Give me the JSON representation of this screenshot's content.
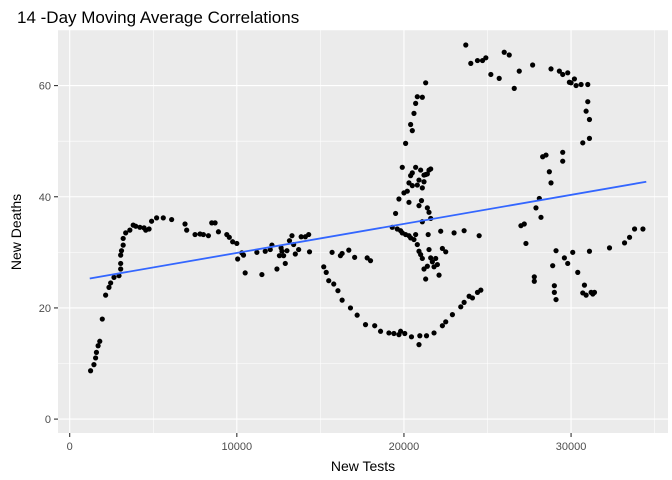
{
  "chart_data": {
    "type": "scatter",
    "title": "14 -Day Moving Average Correlations",
    "xlabel": "New Tests",
    "ylabel": "New Deaths",
    "xlim": [
      -700,
      35800
    ],
    "ylim": [
      -2.5,
      70
    ],
    "xticks": [
      0,
      10000,
      20000,
      30000
    ],
    "xtick_labels": [
      "0",
      "10000",
      "20000",
      "30000"
    ],
    "yticks": [
      0,
      20,
      40,
      60
    ],
    "ytick_labels": [
      "0",
      "20",
      "40",
      "60"
    ],
    "grid": true,
    "background": "#ebebeb",
    "point_color": "#000000",
    "trend_color": "#3366ff",
    "trend_line": {
      "x": [
        1200,
        34500
      ],
      "y": [
        25.3,
        42.7
      ]
    },
    "points": [
      [
        1250,
        8.7
      ],
      [
        1450,
        9.8
      ],
      [
        1550,
        11.0
      ],
      [
        1600,
        12.0
      ],
      [
        1700,
        13.2
      ],
      [
        1800,
        14.0
      ],
      [
        1950,
        18.0
      ],
      [
        2150,
        22.3
      ],
      [
        2350,
        23.7
      ],
      [
        2450,
        24.5
      ],
      [
        2650,
        25.5
      ],
      [
        2950,
        25.8
      ],
      [
        3050,
        27.0
      ],
      [
        3050,
        28.0
      ],
      [
        3050,
        29.5
      ],
      [
        3100,
        30.3
      ],
      [
        3200,
        31.3
      ],
      [
        3200,
        32.5
      ],
      [
        3350,
        33.5
      ],
      [
        3600,
        34.0
      ],
      [
        3800,
        34.9
      ],
      [
        3950,
        34.7
      ],
      [
        4200,
        34.5
      ],
      [
        4450,
        34.4
      ],
      [
        4550,
        34.0
      ],
      [
        4750,
        34.2
      ],
      [
        4900,
        35.6
      ],
      [
        5200,
        36.2
      ],
      [
        5600,
        36.2
      ],
      [
        6100,
        35.9
      ],
      [
        6900,
        35.1
      ],
      [
        7000,
        34.0
      ],
      [
        7500,
        33.2
      ],
      [
        7800,
        33.3
      ],
      [
        8000,
        33.2
      ],
      [
        8300,
        33.0
      ],
      [
        8500,
        35.3
      ],
      [
        8700,
        35.3
      ],
      [
        8900,
        33.7
      ],
      [
        9400,
        33.2
      ],
      [
        9550,
        32.7
      ],
      [
        9750,
        31.9
      ],
      [
        10000,
        31.6
      ],
      [
        10050,
        28.8
      ],
      [
        10300,
        29.9
      ],
      [
        10400,
        29.5
      ],
      [
        10500,
        26.3
      ],
      [
        11200,
        30.0
      ],
      [
        11500,
        26.0
      ],
      [
        11700,
        30.2
      ],
      [
        12000,
        30.5
      ],
      [
        12100,
        31.3
      ],
      [
        12400,
        27.0
      ],
      [
        12550,
        29.4
      ],
      [
        12650,
        30.8
      ],
      [
        12700,
        30.2
      ],
      [
        12800,
        29.4
      ],
      [
        12900,
        28.0
      ],
      [
        13000,
        30.3
      ],
      [
        13150,
        32.1
      ],
      [
        13300,
        33.0
      ],
      [
        13400,
        31.4
      ],
      [
        13500,
        29.7
      ],
      [
        13700,
        30.5
      ],
      [
        13850,
        32.8
      ],
      [
        14100,
        32.8
      ],
      [
        14300,
        33.2
      ],
      [
        14350,
        30.1
      ],
      [
        15200,
        27.4
      ],
      [
        15350,
        26.4
      ],
      [
        15500,
        24.9
      ],
      [
        15700,
        30.0
      ],
      [
        15800,
        24.3
      ],
      [
        16050,
        23.1
      ],
      [
        16200,
        29.4
      ],
      [
        16300,
        29.8
      ],
      [
        16300,
        21.4
      ],
      [
        16700,
        30.4
      ],
      [
        16800,
        20.0
      ],
      [
        17050,
        29.1
      ],
      [
        17200,
        18.7
      ],
      [
        17700,
        17.0
      ],
      [
        17800,
        29.0
      ],
      [
        18000,
        28.5
      ],
      [
        18250,
        16.8
      ],
      [
        18600,
        15.8
      ],
      [
        19100,
        15.5
      ],
      [
        19400,
        15.4
      ],
      [
        19700,
        15.2
      ],
      [
        19800,
        15.8
      ],
      [
        20050,
        15.4
      ],
      [
        20450,
        14.8
      ],
      [
        20900,
        13.4
      ],
      [
        20950,
        15.0
      ],
      [
        21350,
        15.0
      ],
      [
        21800,
        15.5
      ],
      [
        22300,
        16.8
      ],
      [
        22500,
        17.5
      ],
      [
        22900,
        18.8
      ],
      [
        23400,
        20.2
      ],
      [
        23600,
        21.0
      ],
      [
        23900,
        22.1
      ],
      [
        24100,
        21.8
      ],
      [
        24400,
        22.8
      ],
      [
        24600,
        23.2
      ],
      [
        23700,
        67.3
      ],
      [
        24000,
        64.0
      ],
      [
        24400,
        64.5
      ],
      [
        24700,
        64.5
      ],
      [
        24900,
        65.0
      ],
      [
        25200,
        62.0
      ],
      [
        25700,
        61.3
      ],
      [
        26000,
        66.0
      ],
      [
        26300,
        65.5
      ],
      [
        26600,
        59.5
      ],
      [
        26900,
        62.6
      ],
      [
        27000,
        34.8
      ],
      [
        27200,
        35.1
      ],
      [
        27300,
        31.6
      ],
      [
        27700,
        63.7
      ],
      [
        27800,
        24.8
      ],
      [
        27800,
        25.6
      ],
      [
        27900,
        38.0
      ],
      [
        28100,
        39.7
      ],
      [
        28200,
        36.3
      ],
      [
        28300,
        47.2
      ],
      [
        28500,
        47.5
      ],
      [
        28700,
        44.5
      ],
      [
        28800,
        42.5
      ],
      [
        28800,
        63.0
      ],
      [
        28900,
        27.6
      ],
      [
        29000,
        24.0
      ],
      [
        29000,
        22.8
      ],
      [
        29100,
        21.5
      ],
      [
        29100,
        30.3
      ],
      [
        29300,
        62.6
      ],
      [
        29500,
        48.0
      ],
      [
        29500,
        46.4
      ],
      [
        29500,
        62.0
      ],
      [
        29600,
        29.0
      ],
      [
        29800,
        62.3
      ],
      [
        29800,
        28.0
      ],
      [
        29900,
        60.6
      ],
      [
        30000,
        60.5
      ],
      [
        30100,
        30.0
      ],
      [
        30200,
        61.2
      ],
      [
        30300,
        60.0
      ],
      [
        30400,
        26.4
      ],
      [
        30600,
        60.2
      ],
      [
        30700,
        49.7
      ],
      [
        30700,
        22.7
      ],
      [
        30800,
        24.1
      ],
      [
        30900,
        22.3
      ],
      [
        30900,
        55.4
      ],
      [
        31000,
        60.2
      ],
      [
        31000,
        57.1
      ],
      [
        31100,
        53.9
      ],
      [
        31100,
        50.5
      ],
      [
        31100,
        30.2
      ],
      [
        31200,
        22.8
      ],
      [
        31300,
        22.5
      ],
      [
        31400,
        22.8
      ],
      [
        32300,
        30.8
      ],
      [
        33200,
        31.7
      ],
      [
        33500,
        32.7
      ],
      [
        33800,
        34.2
      ],
      [
        34300,
        34.2
      ],
      [
        19300,
        34.5
      ],
      [
        19600,
        34.2
      ],
      [
        19800,
        33.9
      ],
      [
        19900,
        33.5
      ],
      [
        20100,
        33.2
      ],
      [
        20300,
        33.0
      ],
      [
        20400,
        32.6
      ],
      [
        20600,
        32.3
      ],
      [
        20700,
        33.2
      ],
      [
        20800,
        31.4
      ],
      [
        20900,
        30.2
      ],
      [
        21000,
        29.6
      ],
      [
        21100,
        28.9
      ],
      [
        21200,
        27.0
      ],
      [
        21300,
        25.2
      ],
      [
        21400,
        27.5
      ],
      [
        21450,
        33.2
      ],
      [
        21500,
        30.5
      ],
      [
        21600,
        29.0
      ],
      [
        21700,
        28.3
      ],
      [
        21800,
        27.4
      ],
      [
        21900,
        28.9
      ],
      [
        22000,
        27.8
      ],
      [
        22100,
        25.9
      ],
      [
        22200,
        33.8
      ],
      [
        22300,
        30.7
      ],
      [
        22500,
        30.1
      ],
      [
        23000,
        33.5
      ],
      [
        23600,
        33.9
      ],
      [
        24500,
        33.0
      ],
      [
        19500,
        37.0
      ],
      [
        19700,
        39.6
      ],
      [
        20000,
        40.7
      ],
      [
        20200,
        41.0
      ],
      [
        20300,
        42.5
      ],
      [
        20400,
        43.8
      ],
      [
        20500,
        44.3
      ],
      [
        20700,
        45.3
      ],
      [
        20900,
        43.0
      ],
      [
        21000,
        44.8
      ],
      [
        21100,
        41.6
      ],
      [
        21200,
        42.7
      ],
      [
        21300,
        44.0
      ],
      [
        21400,
        38.0
      ],
      [
        21500,
        37.2
      ],
      [
        21600,
        36.1
      ],
      [
        21100,
        35.5
      ],
      [
        21050,
        39.3
      ],
      [
        20900,
        38.4
      ],
      [
        20300,
        39.0
      ],
      [
        20500,
        42.0
      ],
      [
        20800,
        42.1
      ],
      [
        21200,
        43.9
      ],
      [
        21400,
        44.1
      ],
      [
        21500,
        44.8
      ],
      [
        21600,
        45.0
      ],
      [
        19900,
        45.3
      ],
      [
        20100,
        49.6
      ],
      [
        20400,
        53.0
      ],
      [
        20500,
        51.9
      ],
      [
        20600,
        55.0
      ],
      [
        20700,
        56.8
      ],
      [
        20800,
        58.0
      ],
      [
        21100,
        57.9
      ],
      [
        21300,
        60.5
      ]
    ]
  }
}
